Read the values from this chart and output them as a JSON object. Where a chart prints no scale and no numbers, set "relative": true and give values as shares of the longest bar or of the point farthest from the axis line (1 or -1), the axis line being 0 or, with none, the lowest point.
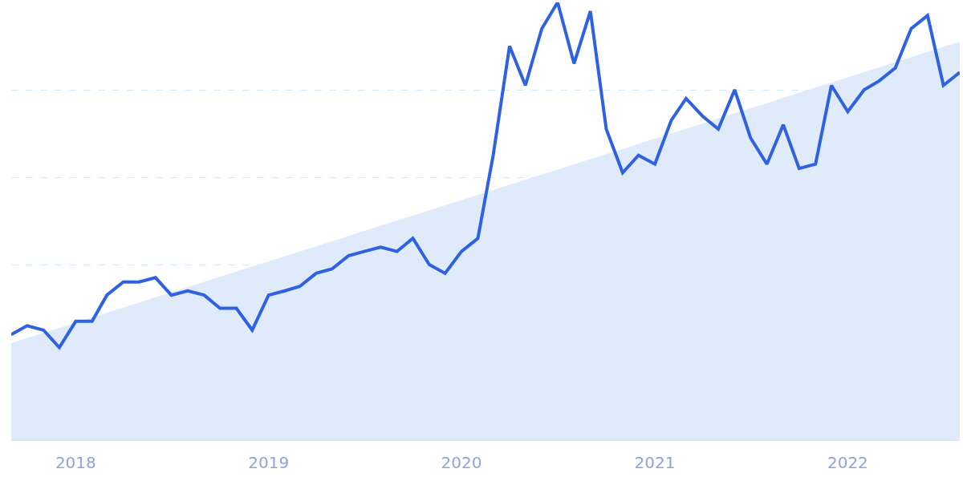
{
  "chart_data": {
    "type": "line",
    "relative": true,
    "grid": "y",
    "line_style": "solid",
    "marker": "none",
    "x": [
      "2017-09",
      "2017-10",
      "2017-11",
      "2017-12",
      "2018-01",
      "2018-02",
      "2018-03",
      "2018-04",
      "2018-05",
      "2018-06",
      "2018-07",
      "2018-08",
      "2018-09",
      "2018-10",
      "2018-11",
      "2018-12",
      "2019-01",
      "2019-02",
      "2019-03",
      "2019-04",
      "2019-05",
      "2019-06",
      "2019-07",
      "2019-08",
      "2019-09",
      "2019-10",
      "2019-11",
      "2019-12",
      "2020-01",
      "2020-02",
      "2020-03",
      "2020-04",
      "2020-05",
      "2020-06",
      "2020-07",
      "2020-08",
      "2020-09",
      "2020-10",
      "2020-11",
      "2020-12",
      "2021-01",
      "2021-02",
      "2021-03",
      "2021-04",
      "2021-05",
      "2021-06",
      "2021-07",
      "2021-08",
      "2021-09",
      "2021-10",
      "2021-11",
      "2021-12",
      "2022-01",
      "2022-02",
      "2022-03",
      "2022-04",
      "2022-05",
      "2022-06",
      "2022-07",
      "2022-08"
    ],
    "xlim": [
      "2017-09",
      "2022-08"
    ],
    "xticks": [
      "2018",
      "2019",
      "2020",
      "2021",
      "2022"
    ],
    "series": [
      {
        "type": "area",
        "color": "#dfeafa",
        "x": [
          "2017-09",
          "2022-08"
        ],
        "values": [
          0.22,
          0.91
        ]
      },
      {
        "color": "#2f62e3",
        "values": [
          0.24,
          0.26,
          0.25,
          0.21,
          0.27,
          0.27,
          0.33,
          0.36,
          0.36,
          0.37,
          0.33,
          0.34,
          0.33,
          0.3,
          0.3,
          0.25,
          0.33,
          0.34,
          0.35,
          0.38,
          0.39,
          0.42,
          0.43,
          0.44,
          0.43,
          0.46,
          0.4,
          0.38,
          0.43,
          0.46,
          0.65,
          0.9,
          0.81,
          0.94,
          1.0,
          0.86,
          0.98,
          0.71,
          0.61,
          0.65,
          0.63,
          0.73,
          0.78,
          0.74,
          0.71,
          0.8,
          0.69,
          0.63,
          0.72,
          0.62,
          0.63,
          0.81,
          0.75,
          0.8,
          0.82,
          0.85,
          0.94,
          0.97,
          0.81,
          0.84
        ]
      }
    ]
  }
}
